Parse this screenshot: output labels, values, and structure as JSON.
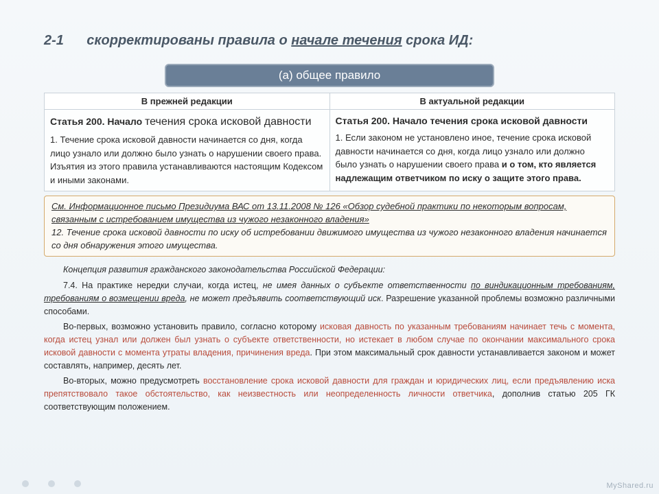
{
  "heading": {
    "num": "2-1",
    "prefix": "скорректированы правила о ",
    "underlined": "начале течения",
    "suffix": " срока ИД:"
  },
  "pill": "(а) общее правило",
  "table": {
    "header_left": "В прежней редакции",
    "header_right": "В актуальной редакции",
    "left_title_a": "Статья 200. Начало ",
    "left_title_b": "течения срока исковой давности",
    "left_body": " 1. Течение срока исковой давности начинается со дня, когда лицо узнало или должно было узнать о нарушении своего права. Изъятия из этого правила устанавливаются настоящим Кодексом и иными законами.",
    "right_title": "Статья 200. Начало течения срока исковой давности",
    "right_body_a": "1. Если законом не установлено иное, течение срока исковой давности начинается со дня, когда лицо узнало или должно было узнать о нарушении своего права ",
    "right_body_b": "и о том, кто является надлежащим ответчиком по иску о защите этого права."
  },
  "box": {
    "link": "См. Информационное письмо Президиума ВАС от 13.11.2008 № 126 «Обзор судебной практики по некоторым вопросам, связанным с истребованием имущества из чужого незаконного владения»",
    "body": "12. Течение срока исковой давности по иску об истребовании движимого имущества из чужого незаконного владения начинается со дня обнаружения этого имущества."
  },
  "concept": {
    "title": "Концепция развития гражданского законодательства Российской Федерации:",
    "p1a": "7.4. На практике нередки случаи, когда истец, ",
    "p1b": "не имея данных о субъекте ответственности ",
    "p1u": "по виндикационным требованиям, требованиям о возмещении вреда",
    "p1c": ", не может предъявить соответствующий иск",
    "p1d": ". Разрешение указанной проблемы возможно различными способами.",
    "p2a": "Во-первых, возможно установить правило, согласно которому ",
    "p2b": "исковая давность по указанным требованиям начинает течь с момента, когда истец узнал или должен был узнать о субъекте ответственности, но истекает в любом случае по окончании максимального срока исковой давности с момента утраты владения, причинения вреда",
    "p2c": ". При этом максимальный срок давности устанавливается законом и может составлять, например, десять лет.",
    "p3a": "Во-вторых, можно предусмотреть ",
    "p3b": "восстановление срока исковой давности для граждан и юридических лиц, если предъявлению иска препятствовало такое обстоятельство, как неизвестность или неопределенность личности ответчика",
    "p3c": ", дополнив статью 205 ГК соответствующим положением."
  },
  "watermark": "MyShared.ru",
  "colors": {
    "pill_bg": "#6a7f97",
    "box_border": "#d4a96a",
    "highlight": "#b84a3a"
  }
}
